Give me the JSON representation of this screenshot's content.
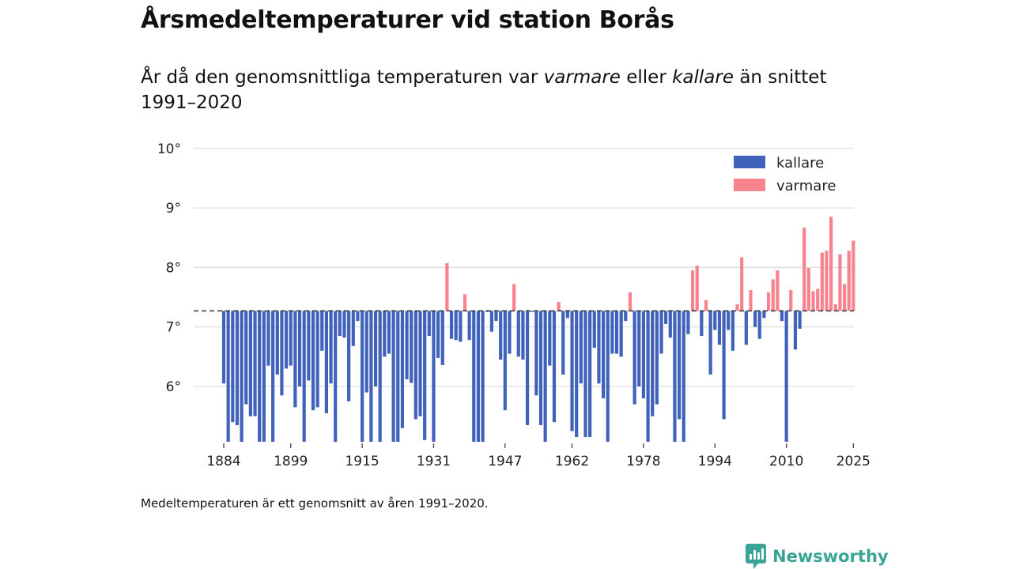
{
  "header": {
    "title": "Årsmedeltemperaturer vid station Borås",
    "subtitle_a": "År då den genomsnittliga temperaturen var ",
    "subtitle_warm": "varmare",
    "subtitle_b": " eller ",
    "subtitle_cold": "kallare",
    "subtitle_c": " än snittet 1991–2020"
  },
  "footer": {
    "note": "Medeltemperaturen är ett genomsnitt av åren 1991–2020.",
    "brand": "Newsworthy"
  },
  "colors": {
    "colder": "#4062bb",
    "warmer": "#f7838f",
    "grid": "#dddddd",
    "reference": "#333333",
    "brand": "#3aa594"
  },
  "chart_data": {
    "type": "bar",
    "title": "Årsmedeltemperaturer vid station Borås",
    "xlabel": "",
    "ylabel": "",
    "baseline": 7.27,
    "ylim": [
      5.0,
      10.0
    ],
    "yticks": [
      6,
      7,
      8,
      9,
      10
    ],
    "ytick_labels": [
      "6°",
      "7°",
      "8°",
      "9°",
      "10°"
    ],
    "xticks": [
      1884,
      1899,
      1915,
      1931,
      1947,
      1962,
      1978,
      1994,
      2010,
      2025
    ],
    "legend": {
      "position": "top-right",
      "entries": [
        {
          "key": "colder",
          "label": "kallare"
        },
        {
          "key": "warmer",
          "label": "varmare"
        }
      ]
    },
    "first_year": 1884,
    "values": [
      6.05,
      5.05,
      5.4,
      5.35,
      5.05,
      5.7,
      5.5,
      5.5,
      5.05,
      5.05,
      6.35,
      5.05,
      6.2,
      5.85,
      6.3,
      6.35,
      5.65,
      6.0,
      5.05,
      6.1,
      5.6,
      5.65,
      6.6,
      5.55,
      6.05,
      5.05,
      6.85,
      6.82,
      5.75,
      6.68,
      7.1,
      5.05,
      5.9,
      5.05,
      6.0,
      5.05,
      6.5,
      6.55,
      5.05,
      5.05,
      5.3,
      6.12,
      6.06,
      5.45,
      5.5,
      5.1,
      6.85,
      5.05,
      6.48,
      6.36,
      8.07,
      6.8,
      6.78,
      6.75,
      7.55,
      6.78,
      5.05,
      5.05,
      5.05,
      7.25,
      6.92,
      7.1,
      6.45,
      5.6,
      6.55,
      7.72,
      6.5,
      6.45,
      5.35,
      7.25,
      5.85,
      5.35,
      5.05,
      6.35,
      5.4,
      7.42,
      6.2,
      7.15,
      5.25,
      5.15,
      6.05,
      5.15,
      5.15,
      6.65,
      6.05,
      5.8,
      5.05,
      6.55,
      6.55,
      6.5,
      7.1,
      7.58,
      5.7,
      6.0,
      5.8,
      5.05,
      5.5,
      5.7,
      6.55,
      7.05,
      6.82,
      5.05,
      5.45,
      5.05,
      6.88,
      7.95,
      8.03,
      6.85,
      7.45,
      6.2,
      6.95,
      6.7,
      5.45,
      6.95,
      6.6,
      7.38,
      8.17,
      6.7,
      7.62,
      7.0,
      6.8,
      7.15,
      7.58,
      7.8,
      7.95,
      7.1,
      5.05,
      7.62,
      6.62,
      6.97,
      8.67,
      7.99,
      7.6,
      7.64,
      8.25,
      8.28,
      8.85,
      7.38,
      8.22,
      7.72,
      8.28,
      8.45
    ]
  }
}
